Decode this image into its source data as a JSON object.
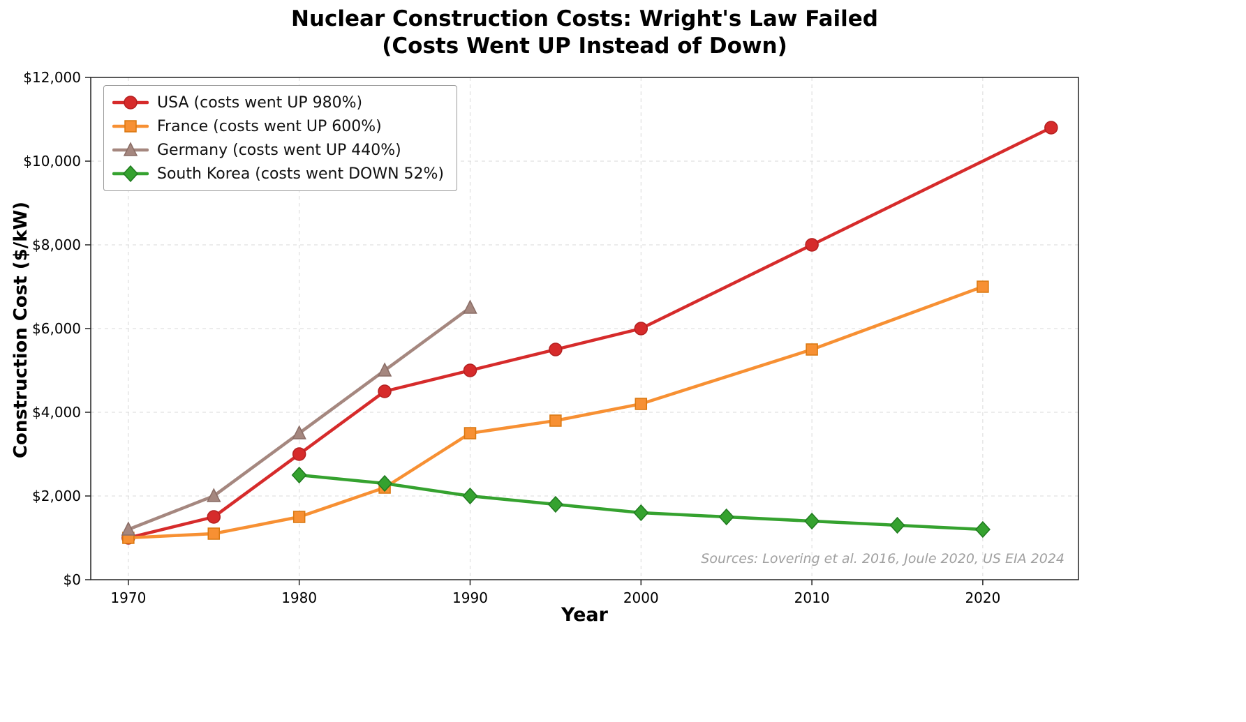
{
  "figure": {
    "title": "Nuclear Construction Costs: Wright's Law Failed\n(Costs Went UP Instead of Down)",
    "source_note": "Sources: Lovering et al. 2016, Joule 2020, US EIA 2024"
  },
  "chart_data": {
    "type": "line",
    "title": "Nuclear Construction Costs: Wright's Law Failed (Costs Went UP Instead of Down)",
    "xlabel": "Year",
    "ylabel": "Construction Cost ($/kW)",
    "xlim": [
      1967.8,
      2025.6
    ],
    "ylim": [
      0,
      12000
    ],
    "x_ticks": [
      1970,
      1980,
      1990,
      2000,
      2010,
      2020
    ],
    "y_ticks": [
      0,
      2000,
      4000,
      6000,
      8000,
      10000,
      12000
    ],
    "y_tick_labels": [
      "$0",
      "$2,000",
      "$4,000",
      "$6,000",
      "$8,000",
      "$10,000",
      "$12,000"
    ],
    "grid": true,
    "legend_position": "upper-left",
    "series": [
      {
        "id": "usa",
        "name": "USA (costs went UP 980%)",
        "color": "#d62b2b",
        "edge_color": "#b31f1f",
        "marker": "circle",
        "x": [
          1970,
          1975,
          1980,
          1985,
          1990,
          1995,
          2000,
          2010,
          2024
        ],
        "y": [
          1000,
          1500,
          3000,
          4500,
          5000,
          5500,
          6000,
          8000,
          10800
        ]
      },
      {
        "id": "france",
        "name": "France (costs went UP 600%)",
        "color": "#f79033",
        "edge_color": "#d9770f",
        "marker": "square",
        "x": [
          1970,
          1975,
          1980,
          1985,
          1990,
          1995,
          2000,
          2010,
          2020
        ],
        "y": [
          1000,
          1100,
          1500,
          2200,
          3500,
          3800,
          4200,
          5500,
          7000
        ]
      },
      {
        "id": "germany",
        "name": "Germany (costs went UP 440%)",
        "color": "#a5877f",
        "edge_color": "#8a6d66",
        "marker": "triangle",
        "x": [
          1970,
          1975,
          1980,
          1985,
          1990
        ],
        "y": [
          1200,
          2000,
          3500,
          5000,
          6500
        ]
      },
      {
        "id": "south-korea",
        "name": "South Korea (costs went DOWN 52%)",
        "color": "#35a22f",
        "edge_color": "#1f7a1f",
        "marker": "diamond",
        "x": [
          1980,
          1985,
          1990,
          1995,
          2000,
          2005,
          2010,
          2015,
          2020
        ],
        "y": [
          2500,
          2300,
          2000,
          1800,
          1600,
          1500,
          1400,
          1300,
          1200
        ]
      }
    ]
  }
}
